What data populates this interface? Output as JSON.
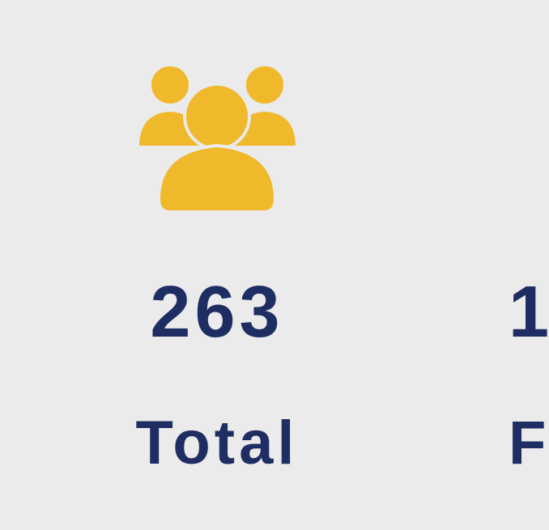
{
  "colors": {
    "background": "#ebebeb",
    "icon": "#f0b82b",
    "text": "#1e2e63"
  },
  "stats": [
    {
      "icon": "people-group-icon",
      "value": "263",
      "label": "Total"
    },
    {
      "value": "1",
      "label": "F"
    }
  ]
}
